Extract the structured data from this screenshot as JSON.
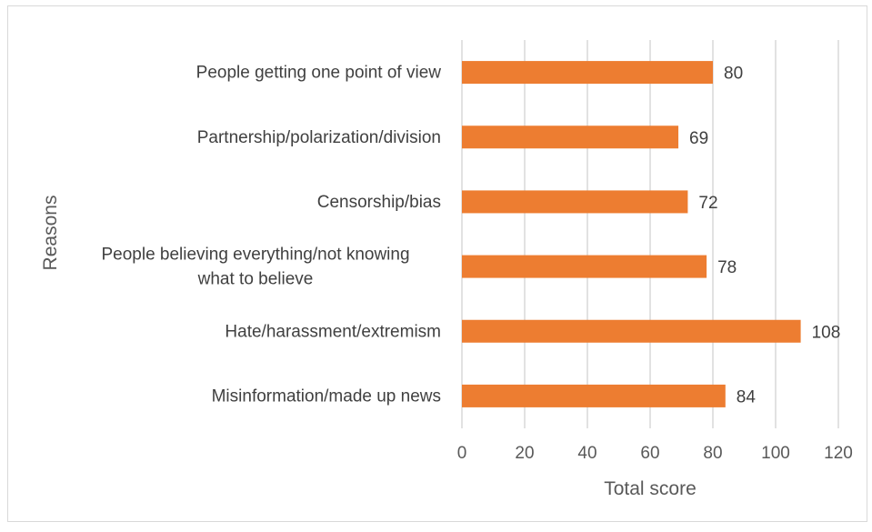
{
  "chart_data": {
    "type": "bar",
    "orientation": "horizontal",
    "categories": [
      "People getting one point of view",
      "Partnership/polarization/division",
      "Censorship/bias",
      "People believing everything/not knowing what to believe",
      "Hate/harassment/extremism",
      "Misinformation/made up news"
    ],
    "category_lines": [
      [
        "People getting one point of view"
      ],
      [
        "Partnership/polarization/division"
      ],
      [
        "Censorship/bias"
      ],
      [
        "People believing everything/not knowing",
        "what to believe"
      ],
      [
        "Hate/harassment/extremism"
      ],
      [
        "Misinformation/made up news"
      ]
    ],
    "values": [
      80,
      69,
      72,
      78,
      108,
      84
    ],
    "xlabel": "Total score",
    "ylabel": "Reasons",
    "xlim": [
      0,
      120
    ],
    "xticks": [
      "0",
      "20",
      "40",
      "60",
      "80",
      "100",
      "120"
    ],
    "grid": "vertical",
    "legend": "none",
    "bar_color": "#ed7d31",
    "grid_color": "#d9d9d9"
  }
}
